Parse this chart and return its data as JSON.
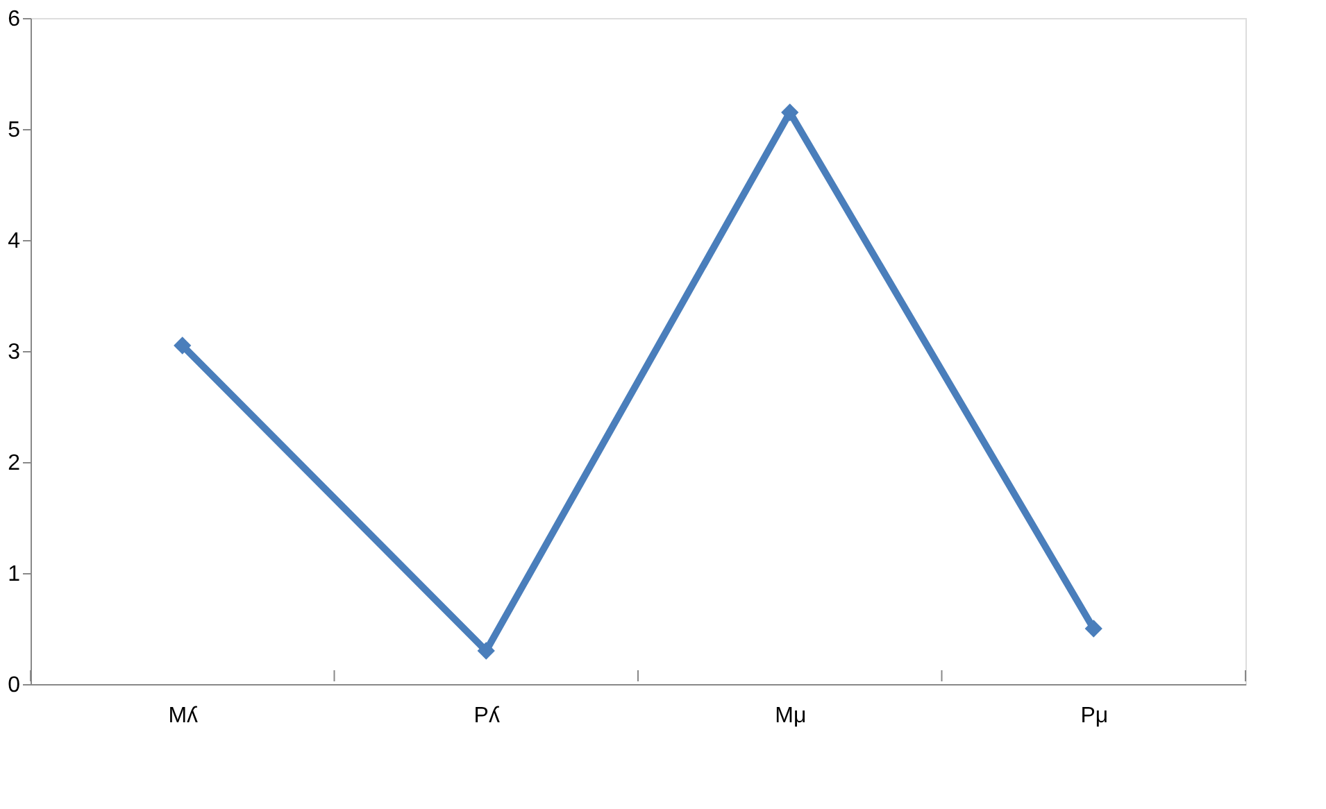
{
  "chart_data": {
    "type": "line",
    "categories": [
      "Mʎ",
      "Pʎ",
      "Mμ",
      "Pμ"
    ],
    "series": [
      {
        "color": "#4a7ebb",
        "values": [
          3.05,
          0.3,
          5.15,
          0.5
        ]
      }
    ],
    "ylim": [
      0,
      6
    ],
    "yticks": [
      0,
      1,
      2,
      3,
      4,
      5,
      6
    ],
    "grid": false,
    "legend": false,
    "marker": "diamond",
    "line_style": "solid"
  }
}
